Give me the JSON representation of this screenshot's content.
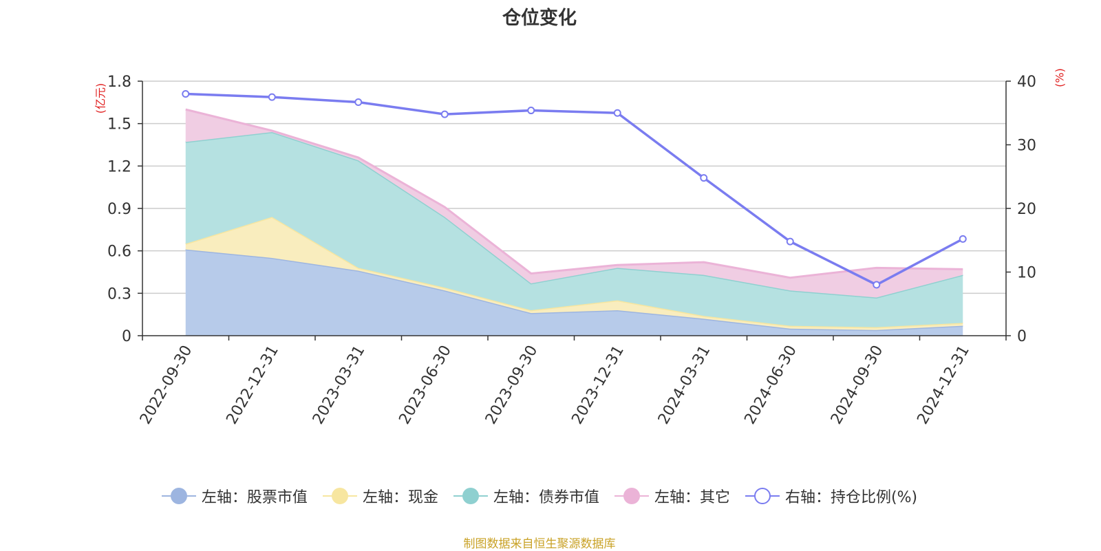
{
  "title": "仓位变化",
  "source": "制图数据来自恒生聚源数据库",
  "chart_data": {
    "type": "area",
    "title": "仓位变化",
    "categories": [
      "2022-09-30",
      "2022-12-31",
      "2023-03-31",
      "2023-06-30",
      "2023-09-30",
      "2023-12-31",
      "2024-03-31",
      "2024-06-30",
      "2024-09-30",
      "2024-12-31"
    ],
    "y_left": {
      "unit": "(亿元)",
      "min": 0,
      "max": 1.8,
      "ticks": [
        "0",
        "0.3",
        "0.6",
        "0.9",
        "1.2",
        "1.5",
        "1.8"
      ],
      "tick_values": [
        0,
        0.3,
        0.6,
        0.9,
        1.2,
        1.5,
        1.8
      ]
    },
    "y_right": {
      "unit": "(%)",
      "min": 0,
      "max": 40,
      "ticks": [
        "0",
        "10",
        "20",
        "30",
        "40"
      ],
      "tick_values": [
        0,
        10,
        20,
        30,
        40
      ]
    },
    "grid": true,
    "legend_position": "bottom",
    "stacked_series": [
      {
        "name": "左轴：股票市值",
        "color": "#9db5e0",
        "fill": "#b7cbea",
        "values": [
          0.61,
          0.55,
          0.46,
          0.32,
          0.16,
          0.18,
          0.12,
          0.05,
          0.04,
          0.07
        ]
      },
      {
        "name": "左轴：现金",
        "color": "#f7e6a0",
        "fill": "#f9edbe",
        "values": [
          0.04,
          0.29,
          0.02,
          0.02,
          0.02,
          0.07,
          0.02,
          0.02,
          0.02,
          0.02
        ]
      },
      {
        "name": "左轴：债券市值",
        "color": "#8fd0d0",
        "fill": "#b5e1e1",
        "values": [
          0.72,
          0.6,
          0.76,
          0.5,
          0.19,
          0.23,
          0.29,
          0.25,
          0.21,
          0.34
        ]
      },
      {
        "name": "左轴：其它",
        "color": "#ebb3d7",
        "fill": "#f0cde3",
        "values": [
          0.23,
          0.01,
          0.02,
          0.07,
          0.07,
          0.02,
          0.09,
          0.09,
          0.21,
          0.04
        ]
      }
    ],
    "line_series": [
      {
        "name": "右轴：持仓比例(%)",
        "color": "#7a7cf0",
        "axis": "right",
        "values": [
          38.0,
          37.5,
          36.7,
          34.8,
          35.4,
          35.0,
          24.8,
          14.8,
          8.0,
          15.2
        ]
      }
    ]
  }
}
